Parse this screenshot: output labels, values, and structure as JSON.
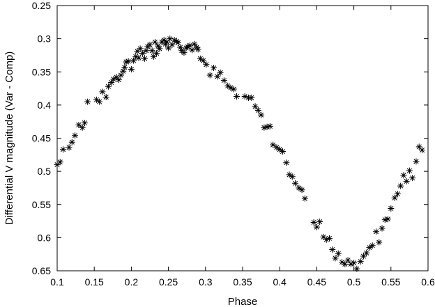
{
  "chart_data": {
    "type": "scatter",
    "title": "",
    "xlabel": "Phase",
    "ylabel": "Differential V magnitude (Var - Comp)",
    "xlim": [
      0.1,
      0.6
    ],
    "ylim": [
      0.25,
      0.65
    ],
    "y_inverted": true,
    "grid": false,
    "legend": "none",
    "marker": "asterisk",
    "marker_color": "#000000",
    "x_ticks": [
      0.1,
      0.15,
      0.2,
      0.25,
      0.3,
      0.35,
      0.4,
      0.45,
      0.5,
      0.55,
      0.6
    ],
    "x_tick_labels": [
      "0.1",
      "0.15",
      "0.2",
      "0.25",
      "0.3",
      "0.35",
      "0.4",
      "0.45",
      "0.5",
      "0.55",
      "0.6"
    ],
    "y_ticks": [
      0.25,
      0.3,
      0.35,
      0.4,
      0.45,
      0.5,
      0.55,
      0.6,
      0.65
    ],
    "y_tick_labels": [
      "0.25",
      "0.3",
      "0.35",
      "0.4",
      "0.45",
      "0.5",
      "0.55",
      "0.6",
      "0.65"
    ],
    "points": [
      [
        0.1,
        0.49
      ],
      [
        0.104,
        0.486
      ],
      [
        0.108,
        0.467
      ],
      [
        0.116,
        0.464
      ],
      [
        0.12,
        0.456
      ],
      [
        0.124,
        0.446
      ],
      [
        0.129,
        0.43
      ],
      [
        0.134,
        0.434
      ],
      [
        0.137,
        0.427
      ],
      [
        0.141,
        0.395
      ],
      [
        0.153,
        0.392
      ],
      [
        0.157,
        0.395
      ],
      [
        0.161,
        0.38
      ],
      [
        0.166,
        0.388
      ],
      [
        0.169,
        0.372
      ],
      [
        0.173,
        0.366
      ],
      [
        0.176,
        0.361
      ],
      [
        0.18,
        0.358
      ],
      [
        0.183,
        0.362
      ],
      [
        0.186,
        0.355
      ],
      [
        0.189,
        0.349
      ],
      [
        0.191,
        0.343
      ],
      [
        0.193,
        0.335
      ],
      [
        0.196,
        0.334
      ],
      [
        0.2,
        0.346
      ],
      [
        0.203,
        0.333
      ],
      [
        0.206,
        0.327
      ],
      [
        0.208,
        0.319
      ],
      [
        0.21,
        0.329
      ],
      [
        0.212,
        0.315
      ],
      [
        0.215,
        0.322
      ],
      [
        0.218,
        0.33
      ],
      [
        0.22,
        0.318
      ],
      [
        0.222,
        0.312
      ],
      [
        0.225,
        0.309
      ],
      [
        0.228,
        0.318
      ],
      [
        0.23,
        0.327
      ],
      [
        0.232,
        0.305
      ],
      [
        0.234,
        0.322
      ],
      [
        0.236,
        0.311
      ],
      [
        0.238,
        0.315
      ],
      [
        0.241,
        0.305
      ],
      [
        0.244,
        0.302
      ],
      [
        0.246,
        0.308
      ],
      [
        0.248,
        0.305
      ],
      [
        0.25,
        0.314
      ],
      [
        0.252,
        0.3
      ],
      [
        0.255,
        0.309
      ],
      [
        0.258,
        0.302
      ],
      [
        0.261,
        0.304
      ],
      [
        0.263,
        0.306
      ],
      [
        0.266,
        0.313
      ],
      [
        0.268,
        0.318
      ],
      [
        0.271,
        0.321
      ],
      [
        0.274,
        0.314
      ],
      [
        0.276,
        0.312
      ],
      [
        0.279,
        0.31
      ],
      [
        0.282,
        0.317
      ],
      [
        0.285,
        0.308
      ],
      [
        0.288,
        0.313
      ],
      [
        0.29,
        0.316
      ],
      [
        0.293,
        0.33
      ],
      [
        0.297,
        0.333
      ],
      [
        0.301,
        0.339
      ],
      [
        0.306,
        0.355
      ],
      [
        0.311,
        0.344
      ],
      [
        0.316,
        0.357
      ],
      [
        0.32,
        0.351
      ],
      [
        0.325,
        0.363
      ],
      [
        0.33,
        0.371
      ],
      [
        0.334,
        0.374
      ],
      [
        0.338,
        0.376
      ],
      [
        0.342,
        0.387
      ],
      [
        0.353,
        0.387
      ],
      [
        0.358,
        0.389
      ],
      [
        0.362,
        0.389
      ],
      [
        0.367,
        0.402
      ],
      [
        0.371,
        0.408
      ],
      [
        0.375,
        0.415
      ],
      [
        0.379,
        0.434
      ],
      [
        0.383,
        0.433
      ],
      [
        0.387,
        0.432
      ],
      [
        0.391,
        0.46
      ],
      [
        0.396,
        0.464
      ],
      [
        0.4,
        0.467
      ],
      [
        0.404,
        0.47
      ],
      [
        0.409,
        0.487
      ],
      [
        0.413,
        0.505
      ],
      [
        0.417,
        0.508
      ],
      [
        0.421,
        0.518
      ],
      [
        0.426,
        0.525
      ],
      [
        0.43,
        0.528
      ],
      [
        0.434,
        0.541
      ],
      [
        0.446,
        0.577
      ],
      [
        0.45,
        0.584
      ],
      [
        0.454,
        0.576
      ],
      [
        0.459,
        0.599
      ],
      [
        0.463,
        0.603
      ],
      [
        0.467,
        0.601
      ],
      [
        0.471,
        0.618
      ],
      [
        0.475,
        0.631
      ],
      [
        0.479,
        0.624
      ],
      [
        0.484,
        0.637
      ],
      [
        0.488,
        0.64
      ],
      [
        0.492,
        0.634
      ],
      [
        0.496,
        0.64
      ],
      [
        0.5,
        0.638
      ],
      [
        0.504,
        0.647
      ],
      [
        0.509,
        0.636
      ],
      [
        0.513,
        0.628
      ],
      [
        0.517,
        0.623
      ],
      [
        0.521,
        0.615
      ],
      [
        0.525,
        0.612
      ],
      [
        0.53,
        0.591
      ],
      [
        0.534,
        0.607
      ],
      [
        0.538,
        0.586
      ],
      [
        0.542,
        0.573
      ],
      [
        0.546,
        0.572
      ],
      [
        0.55,
        0.556
      ],
      [
        0.555,
        0.54
      ],
      [
        0.559,
        0.534
      ],
      [
        0.563,
        0.522
      ],
      [
        0.567,
        0.506
      ],
      [
        0.571,
        0.515
      ],
      [
        0.575,
        0.499
      ],
      [
        0.579,
        0.51
      ],
      [
        0.584,
        0.485
      ],
      [
        0.588,
        0.463
      ],
      [
        0.592,
        0.468
      ]
    ]
  }
}
